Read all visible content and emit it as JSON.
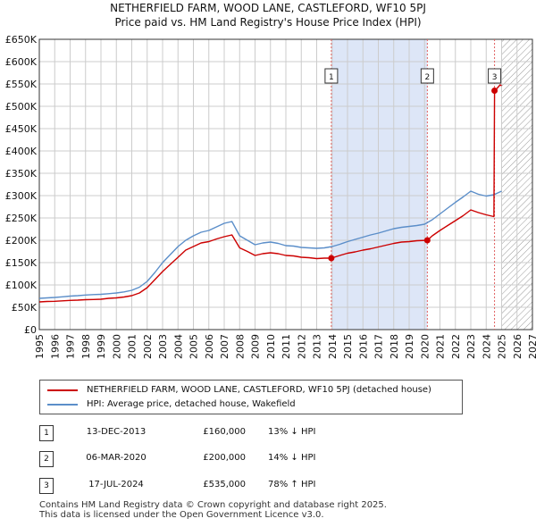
{
  "title_line1": "NETHERFIELD FARM, WOOD LANE, CASTLEFORD, WF10 5PJ",
  "title_line2": "Price paid vs. HM Land Registry's House Price Index (HPI)",
  "legend": {
    "property_label": "NETHERFIELD FARM, WOOD LANE, CASTLEFORD, WF10 5PJ (detached house)",
    "hpi_label": "HPI: Average price, detached house, Wakefield"
  },
  "sales": [
    {
      "num": "1",
      "date": "13-DEC-2013",
      "price": "£160,000",
      "hpi": "13% ↓ HPI"
    },
    {
      "num": "2",
      "date": "06-MAR-2020",
      "price": "£200,000",
      "hpi": "14% ↓ HPI"
    },
    {
      "num": "3",
      "date": "17-JUL-2024",
      "price": "£535,000",
      "hpi": "78% ↑ HPI"
    }
  ],
  "footer_line1": "Contains HM Land Registry data © Crown copyright and database right 2025.",
  "footer_line2": "This data is licensed under the Open Government Licence v3.0.",
  "colors": {
    "property": "#cc0000",
    "hpi": "#5b8ec9",
    "shade": "#dde6f7",
    "grid": "#cccccc",
    "hatch": "#999999"
  },
  "chart_data": {
    "type": "line",
    "title": "Price paid vs. HM Land Registry's House Price Index (HPI)",
    "xlim": [
      1995,
      2027
    ],
    "ylim": [
      0,
      650000
    ],
    "x_ticks": [
      1995,
      1996,
      1997,
      1998,
      1999,
      2000,
      2001,
      2002,
      2003,
      2004,
      2005,
      2006,
      2007,
      2008,
      2009,
      2010,
      2011,
      2012,
      2013,
      2014,
      2015,
      2016,
      2017,
      2018,
      2019,
      2020,
      2021,
      2022,
      2023,
      2024,
      2025,
      2026,
      2027
    ],
    "y_ticks": [
      0,
      50000,
      100000,
      150000,
      200000,
      250000,
      300000,
      350000,
      400000,
      450000,
      500000,
      550000,
      600000,
      650000
    ],
    "y_tick_labels": [
      "£0",
      "£50K",
      "£100K",
      "£150K",
      "£200K",
      "£250K",
      "£300K",
      "£350K",
      "£400K",
      "£450K",
      "£500K",
      "£550K",
      "£600K",
      "£650K"
    ],
    "shaded_range": [
      2013.95,
      2020.18
    ],
    "future_hatch_from": 2025.0,
    "series": [
      {
        "name": "NETHERFIELD FARM, WOOD LANE, CASTLEFORD, WF10 5PJ (detached house)",
        "color": "#cc0000",
        "x": [
          1995.0,
          1995.5,
          1996.0,
          1996.5,
          1997.0,
          1997.5,
          1998.0,
          1998.5,
          1999.0,
          1999.5,
          2000.0,
          2000.5,
          2001.0,
          2001.5,
          2002.0,
          2002.5,
          2003.0,
          2003.5,
          2004.0,
          2004.5,
          2005.0,
          2005.5,
          2006.0,
          2006.5,
          2007.0,
          2007.5,
          2008.0,
          2008.5,
          2009.0,
          2009.5,
          2010.0,
          2010.5,
          2011.0,
          2011.5,
          2012.0,
          2012.5,
          2013.0,
          2013.5,
          2013.95,
          2014.5,
          2015.0,
          2015.5,
          2016.0,
          2016.5,
          2017.0,
          2017.5,
          2018.0,
          2018.5,
          2019.0,
          2019.5,
          2020.18,
          2020.5,
          2021.0,
          2021.5,
          2022.0,
          2022.5,
          2023.0,
          2023.5,
          2024.0,
          2024.5,
          2024.54,
          2024.7,
          2024.9,
          2025.0
        ],
        "values": [
          62000,
          63000,
          63500,
          64500,
          65500,
          66000,
          67000,
          67500,
          68000,
          70000,
          71000,
          73000,
          76000,
          82000,
          94000,
          112000,
          130000,
          146000,
          162000,
          178000,
          186000,
          194000,
          197000,
          203000,
          208000,
          212000,
          183000,
          175000,
          166000,
          170000,
          172000,
          170000,
          166000,
          165000,
          162000,
          161000,
          159000,
          160000,
          160000,
          166000,
          171000,
          174000,
          178000,
          181000,
          185000,
          189000,
          193000,
          196000,
          197000,
          199000,
          200000,
          210000,
          222000,
          233000,
          244000,
          255000,
          268000,
          262000,
          257000,
          253000,
          535000,
          540000,
          548000,
          546000
        ]
      },
      {
        "name": "HPI: Average price, detached house, Wakefield",
        "color": "#5b8ec9",
        "x": [
          1995.0,
          1995.5,
          1996.0,
          1996.5,
          1997.0,
          1997.5,
          1998.0,
          1998.5,
          1999.0,
          1999.5,
          2000.0,
          2000.5,
          2001.0,
          2001.5,
          2002.0,
          2002.5,
          2003.0,
          2003.5,
          2004.0,
          2004.5,
          2005.0,
          2005.5,
          2006.0,
          2006.5,
          2007.0,
          2007.5,
          2008.0,
          2008.5,
          2009.0,
          2009.5,
          2010.0,
          2010.5,
          2011.0,
          2011.5,
          2012.0,
          2012.5,
          2013.0,
          2013.5,
          2014.0,
          2014.5,
          2015.0,
          2015.5,
          2016.0,
          2016.5,
          2017.0,
          2017.5,
          2018.0,
          2018.5,
          2019.0,
          2019.5,
          2020.0,
          2020.5,
          2021.0,
          2021.5,
          2022.0,
          2022.5,
          2023.0,
          2023.5,
          2024.0,
          2024.5,
          2025.0
        ],
        "values": [
          70000,
          71000,
          72000,
          73500,
          75000,
          76000,
          77500,
          78500,
          79000,
          80500,
          82000,
          84500,
          88000,
          95000,
          108000,
          128000,
          150000,
          168000,
          186000,
          200000,
          210000,
          218000,
          222000,
          230000,
          238000,
          242000,
          210000,
          200000,
          190000,
          194000,
          196000,
          193000,
          188000,
          187000,
          184000,
          183000,
          182000,
          183000,
          186000,
          191000,
          197000,
          202000,
          207000,
          212000,
          216000,
          221000,
          226000,
          229000,
          231000,
          233000,
          236000,
          246000,
          259000,
          272000,
          285000,
          297000,
          310000,
          303000,
          299000,
          302000,
          310000
        ]
      }
    ],
    "sale_markers": [
      {
        "label": "1",
        "x": 2013.95,
        "value": 160000
      },
      {
        "label": "2",
        "x": 2020.18,
        "value": 200000
      },
      {
        "label": "3",
        "x": 2024.54,
        "value": 535000
      }
    ]
  }
}
